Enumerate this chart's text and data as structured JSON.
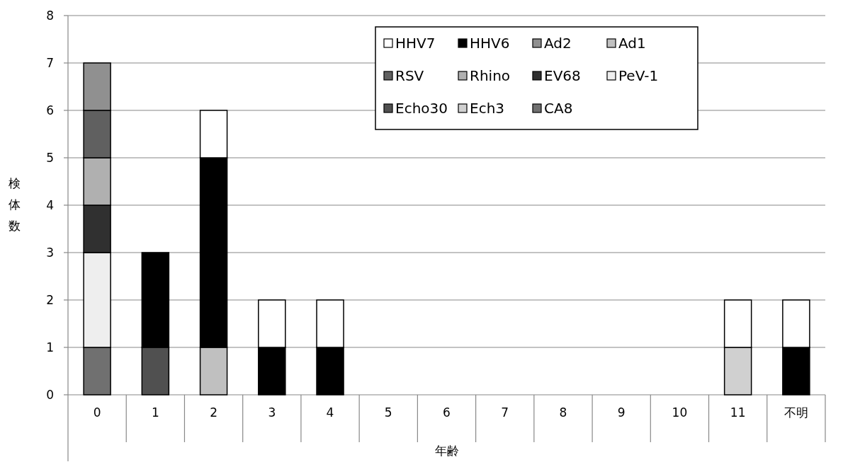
{
  "chart_data": {
    "type": "bar",
    "stacked": true,
    "xlabel": "年齢",
    "ylabel": "検体数",
    "categories": [
      "0",
      "1",
      "2",
      "3",
      "4",
      "5",
      "6",
      "7",
      "8",
      "9",
      "10",
      "11",
      "不明"
    ],
    "series": [
      {
        "name": "CA8",
        "color": "#707070",
        "values": [
          1,
          0,
          0,
          0,
          0,
          0,
          0,
          0,
          0,
          0,
          0,
          0,
          0
        ]
      },
      {
        "name": "Ech3",
        "color": "#d0d0d0",
        "values": [
          0,
          0,
          0,
          0,
          0,
          0,
          0,
          0,
          0,
          0,
          0,
          1,
          0
        ]
      },
      {
        "name": "Echo30",
        "color": "#505050",
        "values": [
          0,
          1,
          0,
          0,
          0,
          0,
          0,
          0,
          0,
          0,
          0,
          0,
          0
        ]
      },
      {
        "name": "PeV-1",
        "color": "#eeeeee",
        "values": [
          2,
          0,
          0,
          0,
          0,
          0,
          0,
          0,
          0,
          0,
          0,
          0,
          0
        ]
      },
      {
        "name": "EV68",
        "color": "#303030",
        "values": [
          1,
          0,
          0,
          0,
          0,
          0,
          0,
          0,
          0,
          0,
          0,
          0,
          0
        ]
      },
      {
        "name": "Rhino",
        "color": "#b0b0b0",
        "values": [
          1,
          0,
          0,
          0,
          0,
          0,
          0,
          0,
          0,
          0,
          0,
          0,
          0
        ]
      },
      {
        "name": "RSV",
        "color": "#606060",
        "values": [
          1,
          0,
          0,
          0,
          0,
          0,
          0,
          0,
          0,
          0,
          0,
          0,
          0
        ]
      },
      {
        "name": "Ad1",
        "color": "#c0c0c0",
        "values": [
          0,
          0,
          1,
          0,
          0,
          0,
          0,
          0,
          0,
          0,
          0,
          0,
          0
        ]
      },
      {
        "name": "Ad2",
        "color": "#909090",
        "values": [
          1,
          0,
          0,
          0,
          0,
          0,
          0,
          0,
          0,
          0,
          0,
          0,
          0
        ]
      },
      {
        "name": "HHV6",
        "color": "#000000",
        "values": [
          0,
          2,
          4,
          1,
          1,
          0,
          0,
          0,
          0,
          0,
          0,
          0,
          1
        ]
      },
      {
        "name": "HHV7",
        "color": "#ffffff",
        "values": [
          0,
          0,
          1,
          1,
          1,
          0,
          0,
          0,
          0,
          0,
          0,
          1,
          1
        ]
      }
    ],
    "ylim": [
      0,
      8
    ],
    "yticks": [
      0,
      1,
      2,
      3,
      4,
      5,
      6,
      7,
      8
    ],
    "grid": "y",
    "legend": "top right"
  }
}
